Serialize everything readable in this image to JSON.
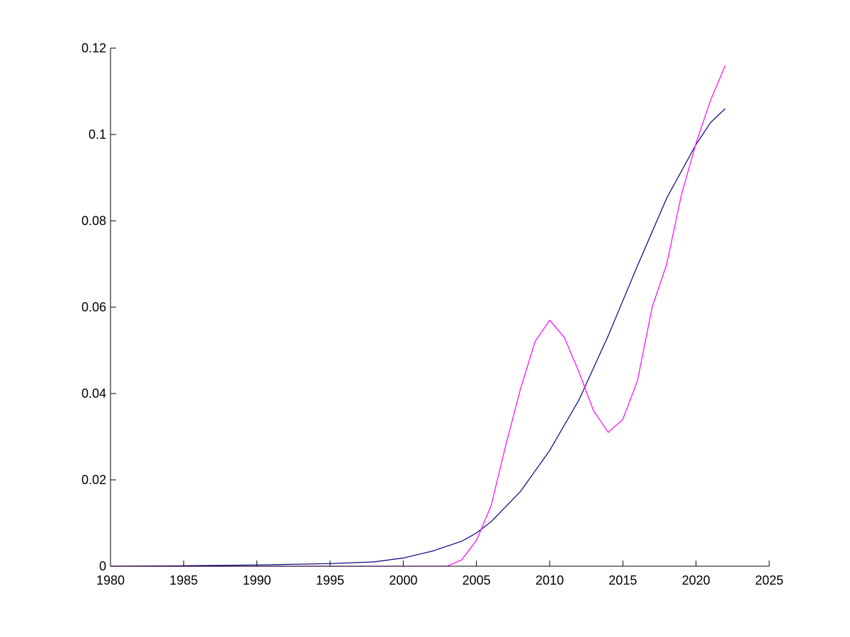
{
  "chart_data": {
    "type": "line",
    "title": "",
    "xlabel": "",
    "ylabel": "",
    "xlim": [
      1980,
      2025
    ],
    "ylim": [
      0,
      0.12
    ],
    "xticks": [
      1980,
      1985,
      1990,
      1995,
      2000,
      2005,
      2010,
      2015,
      2020,
      2025
    ],
    "xtick_labels": [
      "1980",
      "1985",
      "1990",
      "1995",
      "2000",
      "2005",
      "2010",
      "2015",
      "2020",
      "2025"
    ],
    "yticks": [
      0,
      0.02,
      0.04,
      0.06,
      0.08,
      0.1,
      0.12
    ],
    "ytick_labels": [
      "0",
      "0.02",
      "0.04",
      "0.06",
      "0.08",
      "0.1",
      "0.12"
    ],
    "grid": false,
    "legend": "none",
    "series": [
      {
        "color": "#00007f",
        "x": [
          1980,
          1985,
          1990,
          1995,
          1998,
          2000,
          2002,
          2004,
          2005,
          2006,
          2008,
          2010,
          2012,
          2014,
          2016,
          2018,
          2020,
          2021,
          2022
        ],
        "y": [
          0.0,
          0.0001,
          0.0003,
          0.0006,
          0.001,
          0.0019,
          0.0035,
          0.0058,
          0.0077,
          0.0103,
          0.0173,
          0.0268,
          0.0385,
          0.0534,
          0.0696,
          0.0853,
          0.0977,
          0.1028,
          0.106
        ]
      },
      {
        "color": "#ff00ff",
        "x": [
          1980,
          1985,
          1990,
          1995,
          2000,
          2003,
          2004,
          2005,
          2006,
          2007,
          2008,
          2009,
          2010,
          2011,
          2012,
          2013,
          2014,
          2015,
          2016,
          2017,
          2018,
          2019,
          2020,
          2021,
          2022
        ],
        "y": [
          0.0,
          0.0,
          0.0,
          0.0,
          0.0,
          0.0,
          0.0015,
          0.006,
          0.014,
          0.028,
          0.041,
          0.052,
          0.057,
          0.053,
          0.045,
          0.036,
          0.031,
          0.034,
          0.043,
          0.06,
          0.07,
          0.086,
          0.098,
          0.108,
          0.116
        ]
      }
    ]
  }
}
